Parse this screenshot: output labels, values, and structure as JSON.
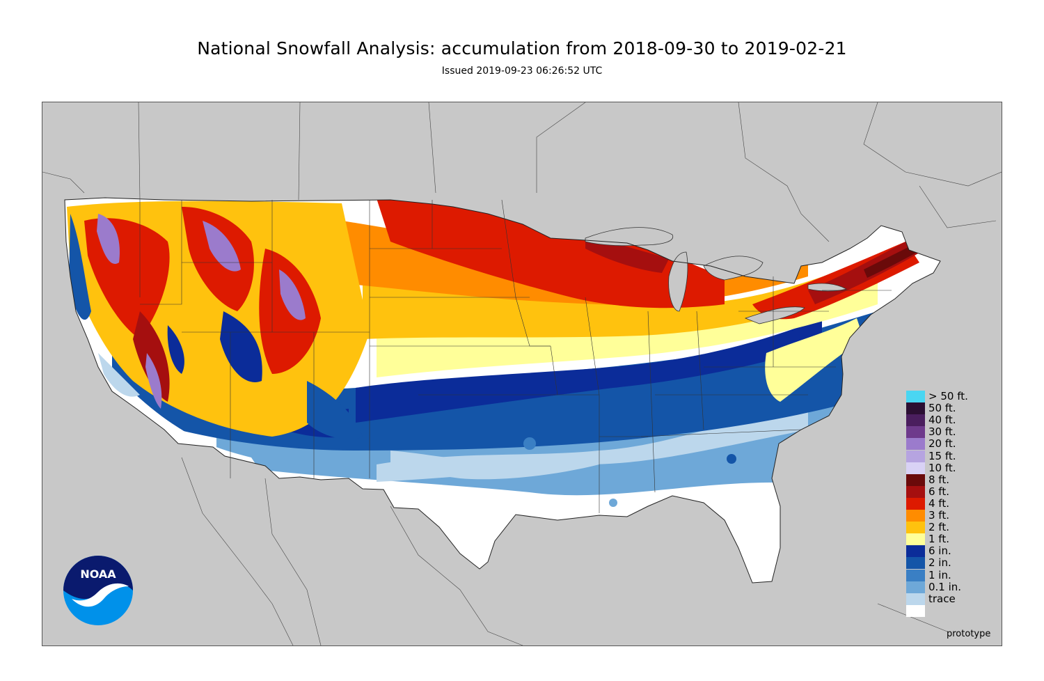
{
  "title": "National Snowfall Analysis: accumulation from 2018-09-30 to 2019-02-21",
  "subtitle": "Issued 2019-09-23 06:26:52 UTC",
  "footer_note": "prototype",
  "logo": {
    "text": "NOAA",
    "icon": "noaa-logo-icon"
  },
  "colors": {
    "land_outside": "#c8c8c8",
    "background": "#ffffff"
  },
  "legend": [
    {
      "label": "> 50 ft.",
      "color": "#4ad6f2"
    },
    {
      "label": "50 ft.",
      "color": "#2b0f33"
    },
    {
      "label": "40 ft.",
      "color": "#4a1e5e"
    },
    {
      "label": "30 ft.",
      "color": "#6e3a8c"
    },
    {
      "label": "20 ft.",
      "color": "#9b7bcc"
    },
    {
      "label": "15 ft.",
      "color": "#b6a4e0"
    },
    {
      "label": "10 ft.",
      "color": "#d9d2f5"
    },
    {
      "label": "8 ft.",
      "color": "#6a0a0a"
    },
    {
      "label": "6 ft.",
      "color": "#a50f0f"
    },
    {
      "label": "4 ft.",
      "color": "#dd1a00"
    },
    {
      "label": "3 ft.",
      "color": "#ff8c00"
    },
    {
      "label": "2 ft.",
      "color": "#ffc20e"
    },
    {
      "label": "1 ft.",
      "color": "#ffff99"
    },
    {
      "label": "6 in.",
      "color": "#0b2c99"
    },
    {
      "label": "2 in.",
      "color": "#1455a8"
    },
    {
      "label": "1 in.",
      "color": "#3a7fc4"
    },
    {
      "label": "0.1 in.",
      "color": "#6ea8d8"
    },
    {
      "label": "trace",
      "color": "#bcd7ec"
    },
    {
      "label": "",
      "color": "#ffffff"
    }
  ]
}
